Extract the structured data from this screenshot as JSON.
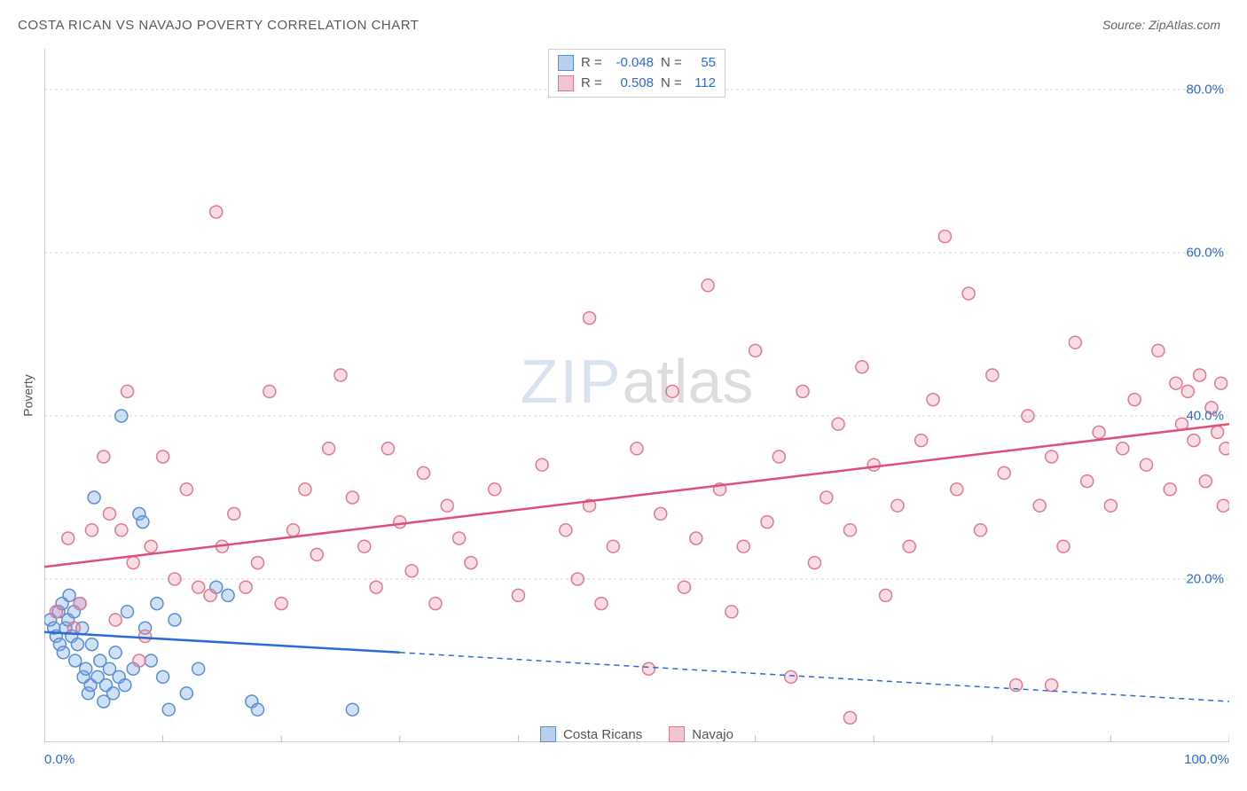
{
  "title": "COSTA RICAN VS NAVAJO POVERTY CORRELATION CHART",
  "source_prefix": "Source: ",
  "source_name": "ZipAtlas.com",
  "ylabel": "Poverty",
  "watermark": {
    "part1": "ZIP",
    "part2": "atlas"
  },
  "chart": {
    "type": "scatter",
    "xlim": [
      0,
      100
    ],
    "ylim": [
      0,
      85
    ],
    "background_color": "#ffffff",
    "grid_color": "#d9d9d9",
    "axis_color": "#bfbfbf",
    "tick_color": "#bfbfbf",
    "xticks_major": [
      0,
      100
    ],
    "xticks_minor": [
      10,
      20,
      30,
      40,
      50,
      60,
      70,
      80,
      90
    ],
    "yticks": [
      20,
      40,
      60,
      80
    ],
    "xtick_labels": {
      "0": "0.0%",
      "100": "100.0%"
    },
    "ytick_labels": {
      "20": "20.0%",
      "40": "40.0%",
      "60": "60.0%",
      "80": "80.0%"
    },
    "marker_radius": 7,
    "marker_stroke_width": 1.5,
    "trend_line_width": 2.5,
    "series": [
      {
        "name": "Costa Ricans",
        "fill": "rgba(120,165,225,0.35)",
        "stroke": "#5a8fd6",
        "swatch_fill": "#b8cfed",
        "swatch_stroke": "#5a8fd6",
        "R_label": "R =",
        "R": "-0.048",
        "N_label": "N =",
        "N": "55",
        "trend": {
          "x1": 0,
          "y1": 13.5,
          "x2": 30,
          "y2": 11.0,
          "x2_dash": 100,
          "y2_dash": 5.0,
          "color": "#2b6cd4"
        },
        "points": [
          [
            0.5,
            15
          ],
          [
            0.8,
            14
          ],
          [
            1.0,
            13
          ],
          [
            1.2,
            16
          ],
          [
            1.3,
            12
          ],
          [
            1.5,
            17
          ],
          [
            1.6,
            11
          ],
          [
            1.8,
            14
          ],
          [
            2.0,
            15
          ],
          [
            2.1,
            18
          ],
          [
            2.3,
            13
          ],
          [
            2.5,
            16
          ],
          [
            2.6,
            10
          ],
          [
            2.8,
            12
          ],
          [
            3.0,
            17
          ],
          [
            3.2,
            14
          ],
          [
            3.3,
            8
          ],
          [
            3.5,
            9
          ],
          [
            3.7,
            6
          ],
          [
            3.9,
            7
          ],
          [
            4.0,
            12
          ],
          [
            4.2,
            30
          ],
          [
            4.5,
            8
          ],
          [
            4.7,
            10
          ],
          [
            5.0,
            5
          ],
          [
            5.2,
            7
          ],
          [
            5.5,
            9
          ],
          [
            5.8,
            6
          ],
          [
            6.0,
            11
          ],
          [
            6.3,
            8
          ],
          [
            6.5,
            40
          ],
          [
            6.8,
            7
          ],
          [
            7.0,
            16
          ],
          [
            7.5,
            9
          ],
          [
            8.0,
            28
          ],
          [
            8.3,
            27
          ],
          [
            8.5,
            14
          ],
          [
            9.0,
            10
          ],
          [
            9.5,
            17
          ],
          [
            10.0,
            8
          ],
          [
            10.5,
            4
          ],
          [
            11.0,
            15
          ],
          [
            12.0,
            6
          ],
          [
            13.0,
            9
          ],
          [
            14.5,
            19
          ],
          [
            15.5,
            18
          ],
          [
            17.5,
            5
          ],
          [
            18.0,
            4
          ],
          [
            26.0,
            4
          ]
        ]
      },
      {
        "name": "Navajo",
        "fill": "rgba(235,140,165,0.30)",
        "stroke": "#e07a94",
        "swatch_fill": "#f4c4d0",
        "swatch_stroke": "#e07a94",
        "R_label": "R =",
        "R": "0.508",
        "N_label": "N =",
        "N": "112",
        "trend": {
          "x1": 0,
          "y1": 21.5,
          "x2": 100,
          "y2": 39.0,
          "color": "#e04f76"
        },
        "points": [
          [
            1,
            16
          ],
          [
            2,
            25
          ],
          [
            2.5,
            14
          ],
          [
            3,
            17
          ],
          [
            4,
            26
          ],
          [
            5,
            35
          ],
          [
            5.5,
            28
          ],
          [
            6,
            15
          ],
          [
            6.5,
            26
          ],
          [
            7,
            43
          ],
          [
            7.5,
            22
          ],
          [
            8,
            10
          ],
          [
            8.5,
            13
          ],
          [
            9,
            24
          ],
          [
            10,
            35
          ],
          [
            11,
            20
          ],
          [
            12,
            31
          ],
          [
            13,
            19
          ],
          [
            14,
            18
          ],
          [
            14.5,
            65
          ],
          [
            15,
            24
          ],
          [
            16,
            28
          ],
          [
            17,
            19
          ],
          [
            18,
            22
          ],
          [
            19,
            43
          ],
          [
            20,
            17
          ],
          [
            21,
            26
          ],
          [
            22,
            31
          ],
          [
            23,
            23
          ],
          [
            24,
            36
          ],
          [
            25,
            45
          ],
          [
            26,
            30
          ],
          [
            27,
            24
          ],
          [
            28,
            19
          ],
          [
            29,
            36
          ],
          [
            30,
            27
          ],
          [
            31,
            21
          ],
          [
            32,
            33
          ],
          [
            33,
            17
          ],
          [
            34,
            29
          ],
          [
            35,
            25
          ],
          [
            36,
            22
          ],
          [
            38,
            31
          ],
          [
            40,
            18
          ],
          [
            42,
            34
          ],
          [
            44,
            26
          ],
          [
            45,
            20
          ],
          [
            46,
            29
          ],
          [
            47,
            17
          ],
          [
            48,
            24
          ],
          [
            50,
            36
          ],
          [
            51,
            9
          ],
          [
            52,
            28
          ],
          [
            53,
            43
          ],
          [
            54,
            19
          ],
          [
            55,
            25
          ],
          [
            56,
            56
          ],
          [
            57,
            31
          ],
          [
            58,
            16
          ],
          [
            59,
            24
          ],
          [
            60,
            48
          ],
          [
            61,
            27
          ],
          [
            62,
            35
          ],
          [
            63,
            8
          ],
          [
            64,
            43
          ],
          [
            65,
            22
          ],
          [
            66,
            30
          ],
          [
            67,
            39
          ],
          [
            68,
            26
          ],
          [
            69,
            46
          ],
          [
            70,
            34
          ],
          [
            71,
            18
          ],
          [
            72,
            29
          ],
          [
            73,
            24
          ],
          [
            74,
            37
          ],
          [
            75,
            42
          ],
          [
            76,
            62
          ],
          [
            77,
            31
          ],
          [
            78,
            55
          ],
          [
            79,
            26
          ],
          [
            80,
            45
          ],
          [
            81,
            33
          ],
          [
            82,
            7
          ],
          [
            83,
            40
          ],
          [
            84,
            29
          ],
          [
            85,
            35
          ],
          [
            86,
            24
          ],
          [
            87,
            49
          ],
          [
            88,
            32
          ],
          [
            89,
            38
          ],
          [
            90,
            29
          ],
          [
            91,
            36
          ],
          [
            92,
            42
          ],
          [
            93,
            34
          ],
          [
            94,
            48
          ],
          [
            95,
            31
          ],
          [
            95.5,
            44
          ],
          [
            96,
            39
          ],
          [
            96.5,
            43
          ],
          [
            97,
            37
          ],
          [
            97.5,
            45
          ],
          [
            98,
            32
          ],
          [
            98.5,
            41
          ],
          [
            99,
            38
          ],
          [
            99.3,
            44
          ],
          [
            99.5,
            29
          ],
          [
            99.7,
            36
          ],
          [
            85,
            7
          ],
          [
            68,
            3
          ],
          [
            46,
            52
          ]
        ]
      }
    ]
  }
}
